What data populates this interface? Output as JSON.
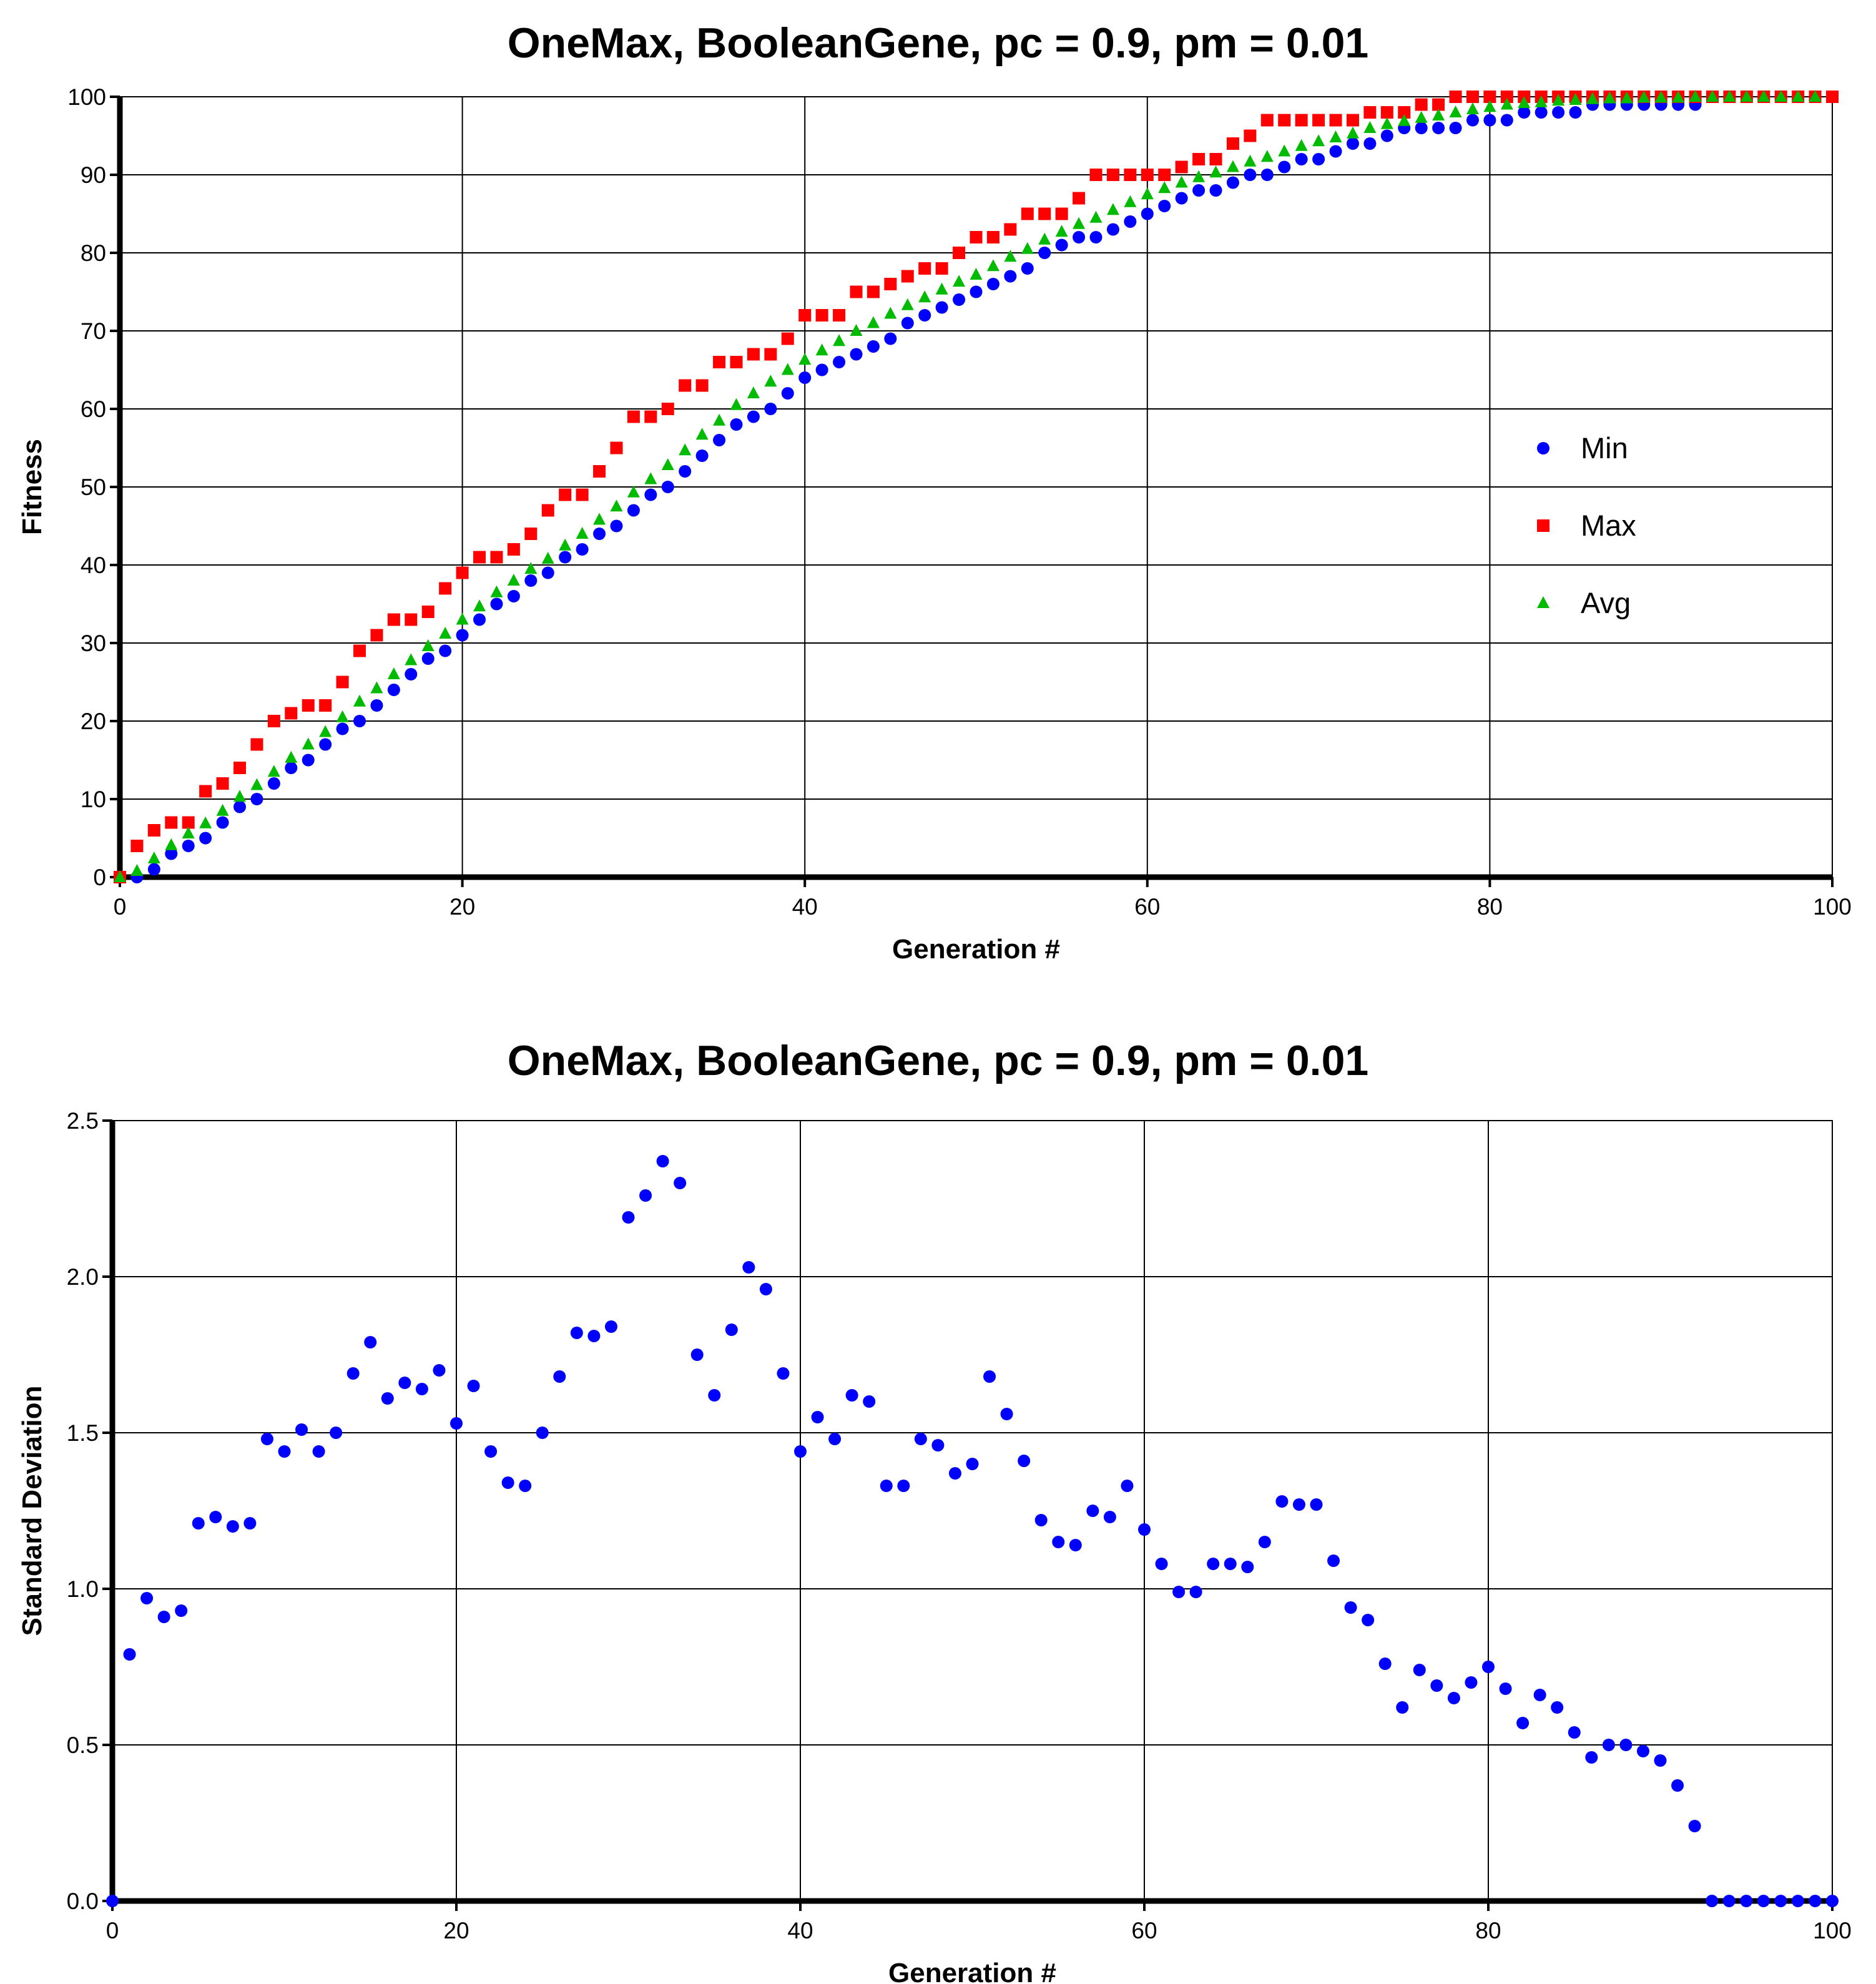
{
  "chart_data": [
    {
      "type": "scatter",
      "title": "OneMax, BooleanGene, pc = 0.9, pm = 0.01",
      "xlabel": "Generation #",
      "ylabel": "Fitness",
      "xlim": [
        0,
        100
      ],
      "ylim": [
        0,
        100
      ],
      "x_ticks": [
        "0",
        "20",
        "40",
        "60",
        "80",
        "100"
      ],
      "y_ticks": [
        "0",
        "10",
        "20",
        "30",
        "40",
        "50",
        "60",
        "70",
        "80",
        "90",
        "100"
      ],
      "grid": true,
      "legend_position": "right",
      "series": [
        {
          "name": "Min",
          "marker": "circle",
          "color": "#0000ff",
          "values": [
            0,
            0,
            1,
            3,
            4,
            5,
            7,
            9,
            10,
            12,
            14,
            15,
            17,
            19,
            20,
            22,
            24,
            26,
            28,
            29,
            31,
            33,
            35,
            36,
            38,
            39,
            41,
            42,
            44,
            45,
            47,
            49,
            50,
            52,
            54,
            56,
            58,
            59,
            60,
            62,
            64,
            65,
            66,
            67,
            68,
            69,
            71,
            72,
            73,
            74,
            75,
            76,
            77,
            78,
            80,
            81,
            82,
            82,
            83,
            84,
            85,
            86,
            87,
            88,
            88,
            89,
            90,
            90,
            91,
            92,
            92,
            93,
            94,
            94,
            95,
            96,
            96,
            96,
            96,
            97,
            97,
            97,
            98,
            98,
            98,
            98,
            99,
            99,
            99,
            99,
            99,
            99,
            99,
            100,
            100,
            100,
            100,
            100,
            100,
            100,
            100
          ]
        },
        {
          "name": "Max",
          "marker": "square",
          "color": "#ff0000",
          "values": [
            0,
            4,
            6,
            7,
            7,
            11,
            12,
            14,
            17,
            20,
            21,
            22,
            22,
            25,
            29,
            31,
            33,
            33,
            34,
            37,
            39,
            41,
            41,
            42,
            44,
            47,
            49,
            49,
            52,
            55,
            59,
            59,
            60,
            63,
            63,
            66,
            66,
            67,
            67,
            69,
            72,
            72,
            72,
            75,
            75,
            76,
            77,
            78,
            78,
            80,
            82,
            82,
            83,
            85,
            85,
            85,
            87,
            90,
            90,
            90,
            90,
            90,
            91,
            92,
            92,
            94,
            95,
            97,
            97,
            97,
            97,
            97,
            97,
            98,
            98,
            98,
            99,
            99,
            100,
            100,
            100,
            100,
            100,
            100,
            100,
            100,
            100,
            100,
            100,
            100,
            100,
            100,
            100,
            100,
            100,
            100,
            100,
            100,
            100,
            100,
            100
          ]
        },
        {
          "name": "Avg",
          "marker": "triangle",
          "color": "#00bb00",
          "values": [
            0,
            0.8,
            2.4,
            4.1,
            5.6,
            6.9,
            8.5,
            10.3,
            11.8,
            13.5,
            15.3,
            17.0,
            18.6,
            20.5,
            22.5,
            24.2,
            26.0,
            27.8,
            29.6,
            31.2,
            33.0,
            34.7,
            36.5,
            38.0,
            39.5,
            40.8,
            42.5,
            44.0,
            45.8,
            47.5,
            49.3,
            51.0,
            52.8,
            54.7,
            56.7,
            58.5,
            60.5,
            62.0,
            63.5,
            65.0,
            66.3,
            67.5,
            68.7,
            70.0,
            71.0,
            72.2,
            73.3,
            74.3,
            75.3,
            76.3,
            77.2,
            78.3,
            79.5,
            80.5,
            81.7,
            82.7,
            83.7,
            84.5,
            85.5,
            86.5,
            87.5,
            88.3,
            89.0,
            89.7,
            90.3,
            91.0,
            91.7,
            92.3,
            93.0,
            93.7,
            94.3,
            94.8,
            95.3,
            96.0,
            96.5,
            96.9,
            97.3,
            97.6,
            98.0,
            98.4,
            98.7,
            99.0,
            99.2,
            99.3,
            99.5,
            99.6,
            99.7,
            99.8,
            99.8,
            99.9,
            99.9,
            99.9,
            100,
            100,
            100,
            100,
            100,
            100,
            100,
            100
          ]
        }
      ]
    },
    {
      "type": "scatter",
      "title": "OneMax, BooleanGene, pc = 0.9, pm = 0.01",
      "xlabel": "Generation #",
      "ylabel": "Standard Deviation",
      "xlim": [
        0,
        100
      ],
      "ylim": [
        0,
        2.5
      ],
      "x_ticks": [
        "0",
        "20",
        "40",
        "60",
        "80",
        "100"
      ],
      "y_ticks": [
        "0.0",
        "0.5",
        "1.0",
        "1.5",
        "2.0",
        "2.5"
      ],
      "grid": true,
      "series": [
        {
          "marker": "circle",
          "color": "#0000ff",
          "values": [
            0,
            0.79,
            0.97,
            0.91,
            0.93,
            1.21,
            1.23,
            1.2,
            1.21,
            1.48,
            1.44,
            1.51,
            1.44,
            1.5,
            1.69,
            1.79,
            1.61,
            1.66,
            1.64,
            1.7,
            1.53,
            1.65,
            1.44,
            1.34,
            1.33,
            1.5,
            1.68,
            1.82,
            1.81,
            1.84,
            2.19,
            2.26,
            2.37,
            2.3,
            1.75,
            1.62,
            1.83,
            2.03,
            1.96,
            1.69,
            1.44,
            1.55,
            1.48,
            1.62,
            1.6,
            1.33,
            1.33,
            1.48,
            1.46,
            1.37,
            1.4,
            1.68,
            1.56,
            1.41,
            1.22,
            1.15,
            1.14,
            1.25,
            1.23,
            1.33,
            1.19,
            1.08,
            0.99,
            0.99,
            1.08,
            1.08,
            1.07,
            1.15,
            1.28,
            1.27,
            1.27,
            1.09,
            0.94,
            0.9,
            0.76,
            0.62,
            0.74,
            0.69,
            0.65,
            0.7,
            0.75,
            0.68,
            0.57,
            0.66,
            0.62,
            0.54,
            0.46,
            0.5,
            0.5,
            0.48,
            0.45,
            0.37,
            0.24,
            0,
            0,
            0,
            0,
            0,
            0,
            0,
            0
          ]
        }
      ]
    }
  ]
}
